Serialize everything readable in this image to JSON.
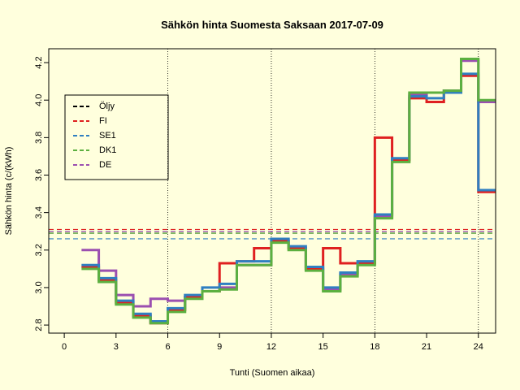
{
  "chart_data": {
    "type": "step",
    "title": "Sähkön hinta Suomesta Saksaan 2017-07-09",
    "x_label": "Tunti (Suomen aikaa)",
    "y_label": "Sähkön hinta (c/(kWh)",
    "x": [
      1,
      2,
      3,
      4,
      5,
      6,
      7,
      8,
      9,
      10,
      11,
      12,
      13,
      14,
      15,
      16,
      17,
      18,
      19,
      20,
      21,
      22,
      23,
      24
    ],
    "series": [
      {
        "name": "Öljy",
        "color": "#000000",
        "mean": 3.29
      },
      {
        "name": "FI",
        "color": "#df2020",
        "mean": 3.31,
        "values": [
          3.11,
          3.04,
          2.92,
          2.85,
          2.81,
          2.88,
          2.95,
          2.98,
          3.13,
          3.14,
          3.21,
          3.25,
          3.21,
          3.1,
          3.21,
          3.13,
          3.13,
          3.8,
          3.68,
          4.01,
          3.99,
          4.04,
          4.13,
          3.51
        ]
      },
      {
        "name": "SE1",
        "color": "#2f7fc1",
        "mean": 3.26,
        "values": [
          3.12,
          3.05,
          2.93,
          2.86,
          2.82,
          2.89,
          2.96,
          3.0,
          3.02,
          3.14,
          3.14,
          3.26,
          3.22,
          3.11,
          3.0,
          3.08,
          3.14,
          3.39,
          3.69,
          4.02,
          4.01,
          4.04,
          4.14,
          3.52
        ]
      },
      {
        "name": "DK1",
        "color": "#5cb040",
        "mean": 3.29,
        "values": [
          3.1,
          3.03,
          2.91,
          2.84,
          2.81,
          2.87,
          2.94,
          2.98,
          2.99,
          3.12,
          3.12,
          3.24,
          3.2,
          3.09,
          2.98,
          3.06,
          3.12,
          3.37,
          3.67,
          4.04,
          4.04,
          4.05,
          4.22,
          4.0
        ]
      },
      {
        "name": "DE",
        "color": "#9b4fb0",
        "mean": 3.3,
        "values": [
          3.2,
          3.09,
          2.96,
          2.9,
          2.94,
          2.93,
          2.95,
          2.98,
          3.0,
          3.12,
          3.12,
          3.25,
          3.21,
          3.1,
          2.99,
          3.07,
          3.13,
          3.38,
          3.68,
          4.03,
          4.04,
          4.05,
          4.21,
          3.99
        ]
      }
    ],
    "xlim": [
      -0.9,
      25
    ],
    "ylim": [
      2.757,
      4.274
    ],
    "xticks": [
      0,
      3,
      6,
      9,
      12,
      15,
      18,
      21,
      24
    ],
    "yticks": [
      2.8,
      {
        "value": 3.0,
        "label": "3.0"
      },
      3.2,
      3.4,
      3.6,
      3.8,
      {
        "value": 4.0,
        "label": "4.0"
      },
      4.2
    ],
    "vlines": [
      6,
      12,
      18,
      24
    ],
    "legend": "top-left"
  }
}
